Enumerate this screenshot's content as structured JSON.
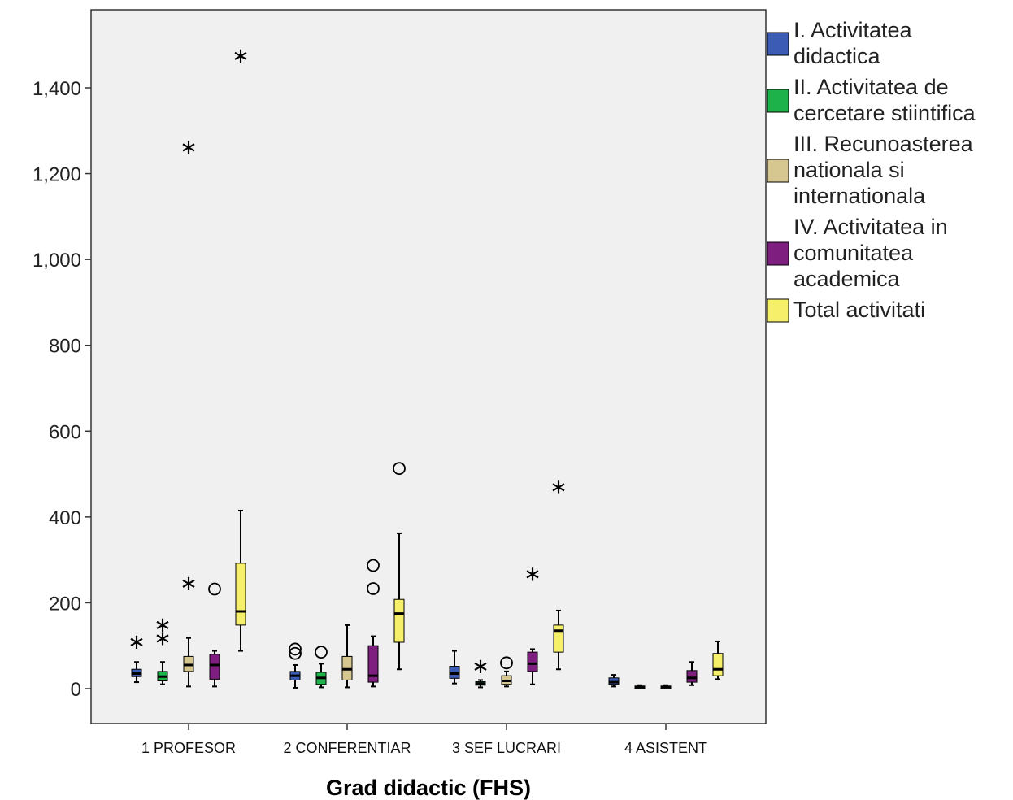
{
  "chart_data": {
    "type": "boxplot",
    "xlabel": "Grad didactic (FHS)",
    "ylabel": "",
    "ylim": [
      -80,
      1580
    ],
    "yticks": [
      0,
      200,
      400,
      600,
      800,
      1000,
      1200,
      1400
    ],
    "ytick_labels": [
      "0",
      "200",
      "400",
      "600",
      "800",
      "1,000",
      "1,200",
      "1,400"
    ],
    "categories": [
      "1 PROFESOR",
      "2 CONFERENTIAR",
      "3 SEF LUCRARI",
      "4 ASISTENT"
    ],
    "legend_position": "right",
    "series": [
      {
        "name": "I. Activitatea didactica",
        "color": "#3C5BB5",
        "boxes": [
          {
            "min": 15,
            "q1": 28,
            "median": 35,
            "q3": 45,
            "max": 62,
            "outliers": [],
            "extremes": [
              112
            ]
          },
          {
            "min": 2,
            "q1": 20,
            "median": 30,
            "q3": 40,
            "max": 55,
            "outliers": [
              82,
              92
            ],
            "extremes": []
          },
          {
            "min": 12,
            "q1": 24,
            "median": 35,
            "q3": 52,
            "max": 88,
            "outliers": [],
            "extremes": []
          },
          {
            "min": 5,
            "q1": 10,
            "median": 15,
            "q3": 25,
            "max": 32,
            "outliers": [],
            "extremes": []
          }
        ]
      },
      {
        "name": "II. Activitatea de cercetare stiintifica",
        "color": "#1DB24A",
        "boxes": [
          {
            "min": 10,
            "q1": 18,
            "median": 28,
            "q3": 40,
            "max": 62,
            "outliers": [],
            "extremes": [
              120,
              152
            ]
          },
          {
            "min": 3,
            "q1": 10,
            "median": 25,
            "q3": 38,
            "max": 58,
            "outliers": [
              85
            ],
            "extremes": []
          },
          {
            "min": 3,
            "q1": 8,
            "median": 12,
            "q3": 16,
            "max": 20,
            "outliers": [],
            "extremes": [
              55
            ]
          },
          {
            "min": 0,
            "q1": 2,
            "median": 4,
            "q3": 6,
            "max": 8,
            "outliers": [],
            "extremes": []
          }
        ]
      },
      {
        "name": "III. Recunoasterea nationala si internationala",
        "color": "#D6C690",
        "boxes": [
          {
            "min": 5,
            "q1": 40,
            "median": 55,
            "q3": 75,
            "max": 118,
            "outliers": [],
            "extremes": [
              248,
              1265
            ]
          },
          {
            "min": 3,
            "q1": 20,
            "median": 45,
            "q3": 75,
            "max": 148,
            "outliers": [],
            "extremes": []
          },
          {
            "min": 5,
            "q1": 10,
            "median": 18,
            "q3": 30,
            "max": 40,
            "outliers": [
              60
            ],
            "extremes": []
          },
          {
            "min": 0,
            "q1": 2,
            "median": 4,
            "q3": 6,
            "max": 8,
            "outliers": [],
            "extremes": []
          }
        ]
      },
      {
        "name": "IV. Activitatea in comunitatea academica",
        "color": "#7E1E7E",
        "boxes": [
          {
            "min": 5,
            "q1": 22,
            "median": 55,
            "q3": 80,
            "max": 88,
            "outliers": [
              232
            ],
            "extremes": []
          },
          {
            "min": 5,
            "q1": 15,
            "median": 30,
            "q3": 100,
            "max": 122,
            "outliers": [
              233,
              287
            ],
            "extremes": []
          },
          {
            "min": 10,
            "q1": 40,
            "median": 58,
            "q3": 85,
            "max": 92,
            "outliers": [],
            "extremes": [
              270
            ]
          },
          {
            "min": 8,
            "q1": 15,
            "median": 25,
            "q3": 42,
            "max": 62,
            "outliers": [],
            "extremes": []
          }
        ]
      },
      {
        "name": "Total activitati",
        "color": "#F5EF6A",
        "boxes": [
          {
            "min": 88,
            "q1": 148,
            "median": 180,
            "q3": 292,
            "max": 415,
            "outliers": [],
            "extremes": [
              1478
            ]
          },
          {
            "min": 45,
            "q1": 108,
            "median": 175,
            "q3": 208,
            "max": 362,
            "outliers": [
              513
            ],
            "extremes": []
          },
          {
            "min": 45,
            "q1": 85,
            "median": 135,
            "q3": 148,
            "max": 182,
            "outliers": [],
            "extremes": [
              473
            ]
          },
          {
            "min": 22,
            "q1": 30,
            "median": 45,
            "q3": 82,
            "max": 110,
            "outliers": [],
            "extremes": []
          }
        ]
      }
    ]
  },
  "legend": {
    "items": [
      {
        "lines": [
          "I. Activitatea",
          "didactica"
        ],
        "color": "#3C5BB5"
      },
      {
        "lines": [
          "II. Activitatea de",
          "cercetare stiintifica"
        ],
        "color": "#1DB24A"
      },
      {
        "lines": [
          "III. Recunoasterea",
          "nationala si",
          "internationala"
        ],
        "color": "#D6C690"
      },
      {
        "lines": [
          "IV. Activitatea in",
          "comunitatea",
          "academica"
        ],
        "color": "#7E1E7E"
      },
      {
        "lines": [
          "Total activitati"
        ],
        "color": "#F5EF6A"
      }
    ]
  }
}
